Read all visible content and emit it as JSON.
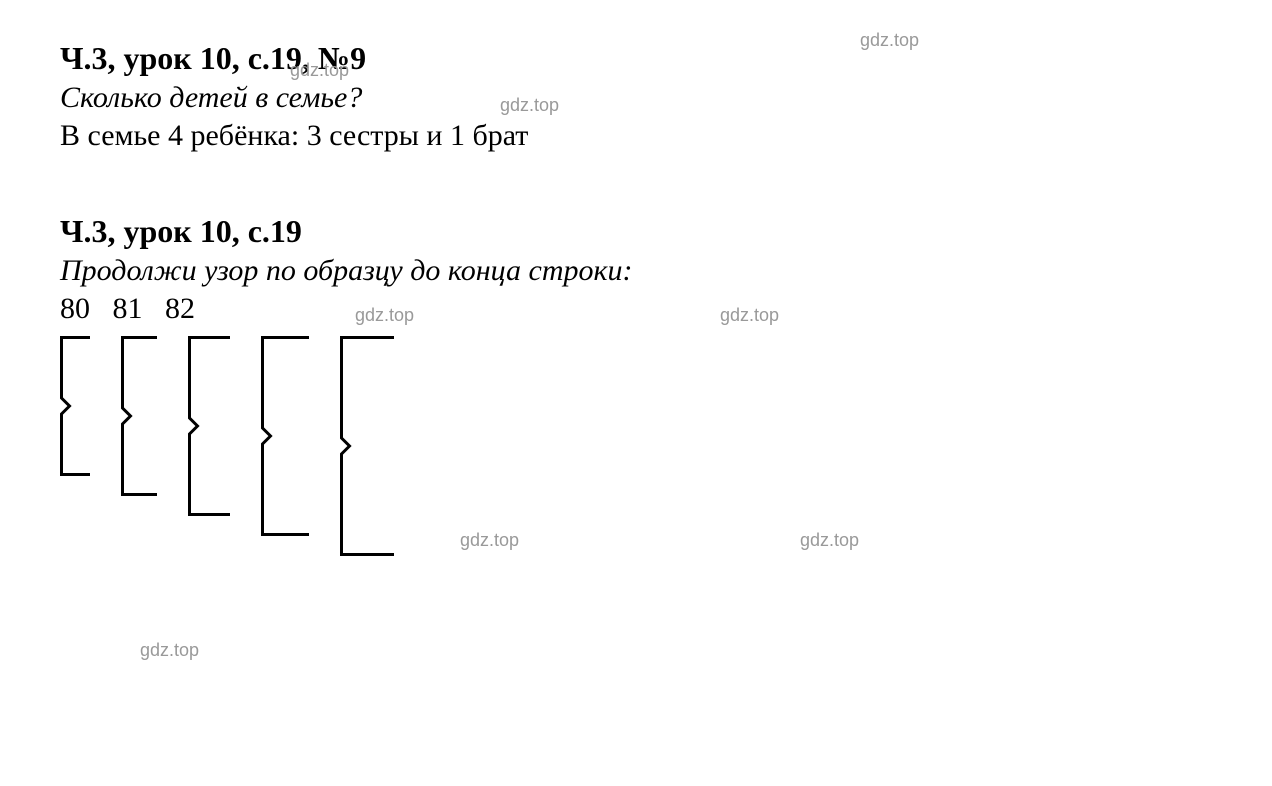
{
  "colors": {
    "text": "#000000",
    "watermark": "#999999",
    "background": "#ffffff",
    "bracket_stroke": "#000000"
  },
  "typography": {
    "heading_fontsize": 32,
    "body_fontsize": 30,
    "watermark_fontsize": 18,
    "heading_weight": "bold",
    "question_style": "italic"
  },
  "section1": {
    "heading": "Ч.3, урок 10, с.19, №9",
    "question": "Сколько детей в семье?",
    "answer": "В семье 4 ребёнка: 3 сестры и 1 брат"
  },
  "section2": {
    "heading": "Ч.3, урок 10, с.19",
    "question": "Продолжи узор по образцу до конца строки:",
    "numbers": "80   81   82"
  },
  "watermarks": {
    "w1": "gdz.top",
    "w2": "gdz.top",
    "w3": "gdz.top",
    "w4": "gdz.top",
    "w5": "gdz.top",
    "w6": "gdz.top",
    "w7": "gdz.top",
    "w8": "gdz.top"
  },
  "brackets": {
    "count": 5,
    "stroke_width": 3,
    "start_height": 140,
    "height_step": 20,
    "start_width": 30,
    "width_step": 6,
    "notch": 8
  }
}
